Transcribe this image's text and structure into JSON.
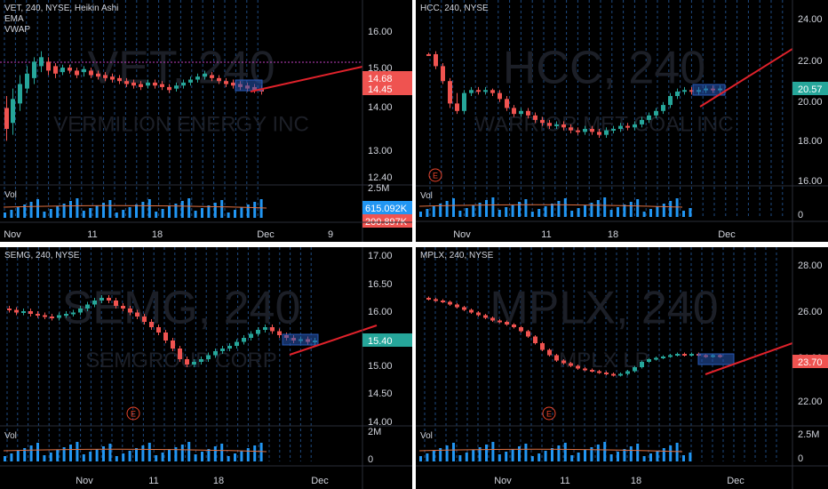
{
  "colors": {
    "up": "#26a69a",
    "down": "#ef5350",
    "grid": "#1e4a80",
    "trend": "#e0222b",
    "box": "#2757b6",
    "vol": "#2196f3",
    "badge": "#e8442b"
  },
  "panels": [
    {
      "id": "vet",
      "header": [
        "VET, 240, NYSE, Heikin Ashi",
        "EMA",
        "VWAP"
      ],
      "watermark": "VET, 240",
      "company": "VERMILION ENERGY INC",
      "y_ticks": [
        "16.00",
        "15.00",
        "14.00",
        "13.00",
        "12.40"
      ],
      "price_tags": [
        {
          "text": "14.68",
          "color": "#ef5350"
        },
        {
          "text": "14.45",
          "color": "#ef5350"
        }
      ],
      "vol_label": "Vol",
      "vol_ticks": [
        "2.5M"
      ],
      "vol_tags": [
        {
          "text": "615.092K",
          "color": "#2196f3"
        },
        {
          "text": "200.897K",
          "color": "#ef5350"
        }
      ],
      "x_ticks": [
        "Nov",
        "11",
        "18",
        "Dec",
        "9"
      ],
      "show_earnings": false,
      "earnings_label": ""
    },
    {
      "id": "hcc",
      "header": [
        "HCC, 240, NYSE"
      ],
      "watermark": "HCC, 240",
      "company": "WARRIOR MET COAL INC",
      "y_ticks": [
        "24.00",
        "22.00",
        "20.00",
        "18.00",
        "16.00"
      ],
      "price_tags": [
        {
          "text": "20.57",
          "color": "#26a69a"
        }
      ],
      "vol_label": "Vol",
      "vol_ticks": [
        "0"
      ],
      "vol_tags": [],
      "x_ticks": [
        "Nov",
        "11",
        "18",
        "Dec"
      ],
      "show_earnings": true,
      "earnings_label": "E"
    },
    {
      "id": "semg",
      "header": [
        "SEMG, 240, NYSE"
      ],
      "watermark": "SEMG, 240",
      "company": "SEMGROUP CORP",
      "y_ticks": [
        "17.00",
        "16.50",
        "16.00",
        "15.50",
        "15.00",
        "14.50",
        "14.00"
      ],
      "price_tags": [
        {
          "text": "15.40",
          "color": "#26a69a"
        }
      ],
      "vol_label": "Vol",
      "vol_ticks": [
        "2M",
        "0"
      ],
      "vol_tags": [],
      "x_ticks": [
        "Nov",
        "11",
        "18",
        "Dec"
      ],
      "show_earnings": true,
      "earnings_label": "E"
    },
    {
      "id": "mplx",
      "header": [
        "MPLX, 240, NYSE"
      ],
      "watermark": "MPLX, 240",
      "company": "MPLX LP",
      "y_ticks": [
        "28.00",
        "26.00",
        "24.00",
        "22.00"
      ],
      "price_tags": [
        {
          "text": "23.70",
          "color": "#ef5350"
        }
      ],
      "vol_label": "Vol",
      "vol_ticks": [
        "2.5M",
        "0"
      ],
      "vol_tags": [],
      "x_ticks": [
        "Nov",
        "11",
        "18",
        "Dec"
      ],
      "show_earnings": true,
      "earnings_label": "E"
    }
  ]
}
